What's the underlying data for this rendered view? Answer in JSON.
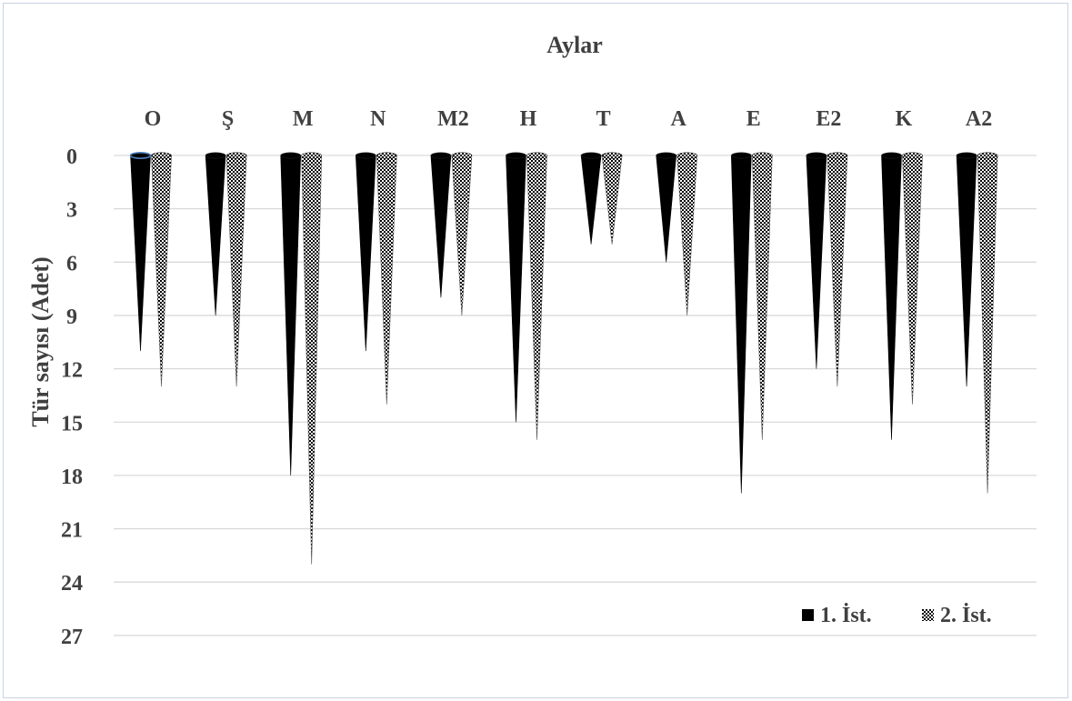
{
  "chart_data": {
    "type": "bar",
    "bar_shape": "cone",
    "xlabel": "Aylar",
    "ylabel": "Tür sayısı (Adet)",
    "categories": [
      "O",
      "Ş",
      "M",
      "N",
      "M2",
      "H",
      "T",
      "A",
      "E",
      "E2",
      "K",
      "A2"
    ],
    "series": [
      {
        "name": "1. İst.",
        "values": [
          11,
          9,
          18,
          11,
          8,
          15,
          5,
          6,
          19,
          12,
          16,
          13
        ],
        "fill": "solid",
        "color": "#000000"
      },
      {
        "name": "2. İst.",
        "values": [
          13,
          13,
          23,
          14,
          9,
          16,
          5,
          9,
          16,
          13,
          14,
          19
        ],
        "fill": "checkered",
        "color": "#000000"
      }
    ],
    "yticks": [
      0,
      3,
      6,
      9,
      12,
      15,
      18,
      21,
      24,
      27
    ],
    "ylim": [
      0,
      27
    ],
    "y_axis_reversed": true,
    "x_axis_position": "top",
    "grid": true,
    "legend_position": "bottom-right"
  }
}
